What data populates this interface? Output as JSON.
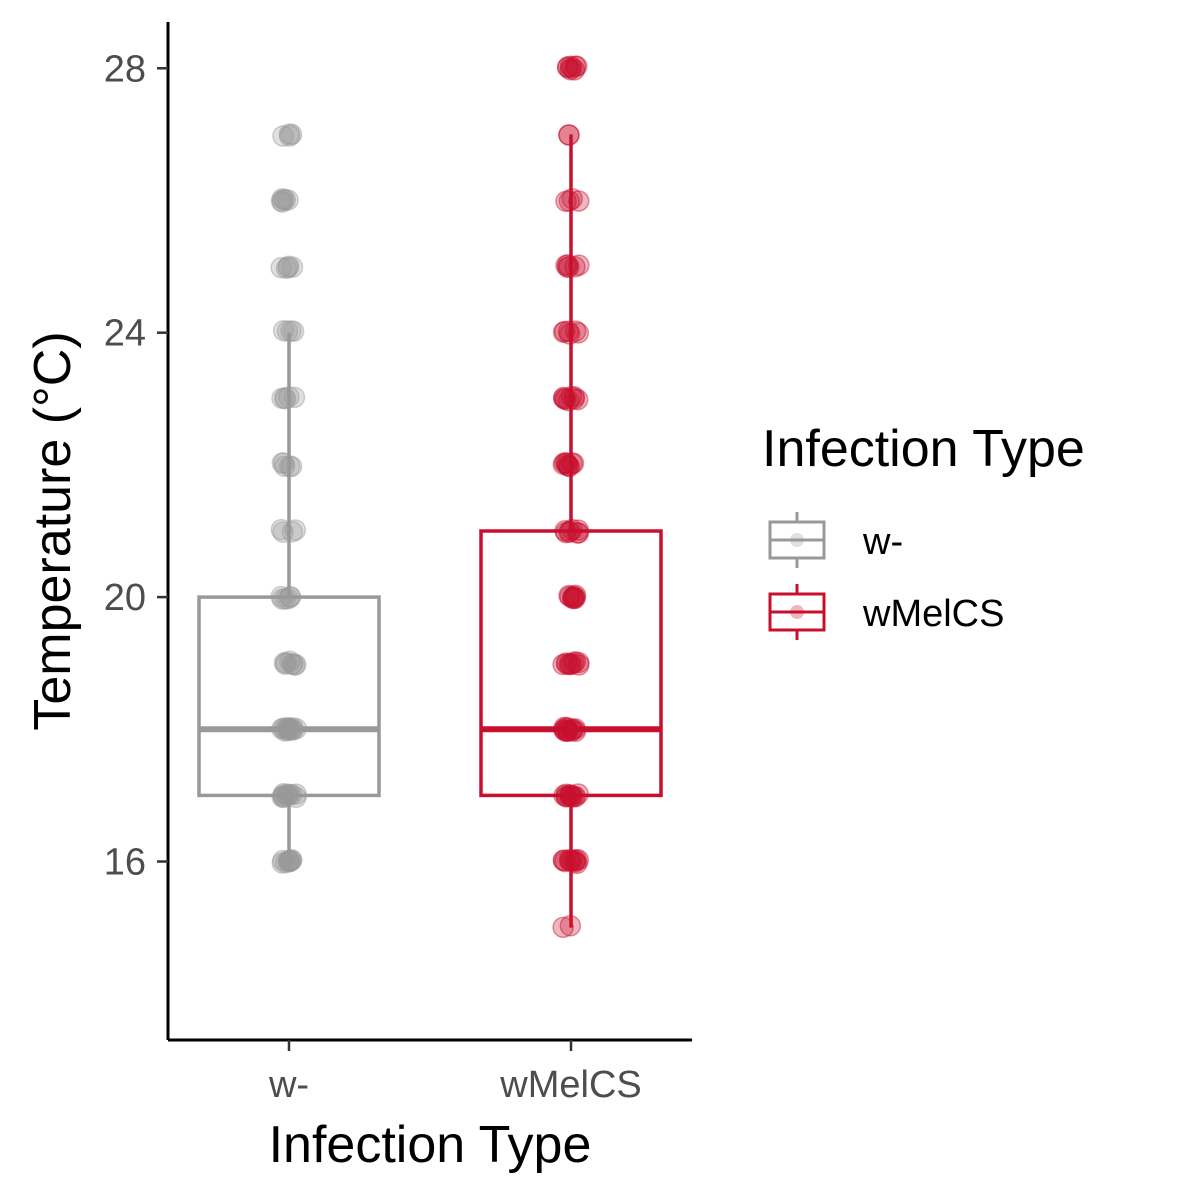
{
  "chart_data": {
    "type": "boxplot",
    "xlabel": "Infection Type",
    "ylabel": "Temperature (°C)",
    "ylim": [
      13.3,
      28.7
    ],
    "yticks": [
      16,
      20,
      24,
      28
    ],
    "categories": [
      "w-",
      "wMelCS"
    ],
    "legend": {
      "title": "Infection Type",
      "placement": "right",
      "items": [
        "w-",
        "wMelCS"
      ]
    },
    "series": [
      {
        "name": "w-",
        "color": "#999999",
        "box": {
          "q1": 17,
          "median": 18,
          "q3": 20,
          "whisker_low": 16,
          "whisker_high": 24
        },
        "points": [
          {
            "y": 16,
            "n": 10
          },
          {
            "y": 17,
            "n": 12
          },
          {
            "y": 18,
            "n": 14
          },
          {
            "y": 19,
            "n": 8
          },
          {
            "y": 20,
            "n": 6
          },
          {
            "y": 21,
            "n": 4
          },
          {
            "y": 22,
            "n": 5
          },
          {
            "y": 23,
            "n": 5
          },
          {
            "y": 24,
            "n": 4
          },
          {
            "y": 25,
            "n": 5
          },
          {
            "y": 26,
            "n": 6
          },
          {
            "y": 27,
            "n": 4
          }
        ]
      },
      {
        "name": "wMelCS",
        "color": "#c8102e",
        "box": {
          "q1": 17,
          "median": 18,
          "q3": 21,
          "whisker_low": 15,
          "whisker_high": 27
        },
        "points": [
          {
            "y": 15,
            "n": 2
          },
          {
            "y": 16,
            "n": 12
          },
          {
            "y": 17,
            "n": 12
          },
          {
            "y": 18,
            "n": 14
          },
          {
            "y": 19,
            "n": 10
          },
          {
            "y": 20,
            "n": 9
          },
          {
            "y": 21,
            "n": 8
          },
          {
            "y": 22,
            "n": 9
          },
          {
            "y": 23,
            "n": 9
          },
          {
            "y": 24,
            "n": 6
          },
          {
            "y": 25,
            "n": 6
          },
          {
            "y": 26,
            "n": 4
          },
          {
            "y": 27,
            "n": 2
          },
          {
            "y": 28,
            "n": 8
          }
        ]
      }
    ]
  }
}
